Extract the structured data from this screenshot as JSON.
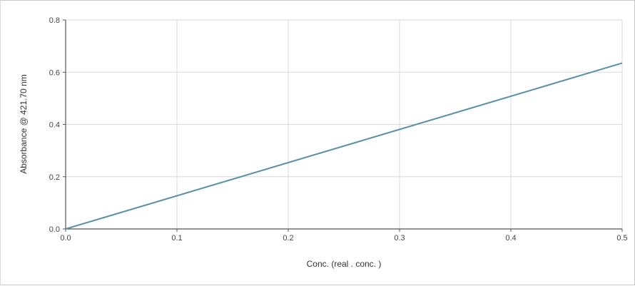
{
  "chart_data": {
    "type": "line",
    "title": "",
    "xlabel": "Conc. (real . conc. )",
    "ylabel": "Absorbance  @ 421.70 nm",
    "xlim": [
      0,
      0.5
    ],
    "ylim": [
      0,
      0.8
    ],
    "x_ticks": [
      "0.0",
      "0.1",
      "0.2",
      "0.3",
      "0.4",
      "0.5"
    ],
    "y_ticks": [
      "0.0",
      "0.2",
      "0.4",
      "0.6",
      "0.8"
    ],
    "grid": true,
    "legend": "none",
    "series": [
      {
        "color": "#5a8fa8",
        "x": [
          0.0,
          0.5
        ],
        "y": [
          0.0,
          0.635
        ]
      }
    ],
    "colors": {
      "grid": "#d9d9d9",
      "axis": "#555555",
      "line": "#5a8fa8"
    }
  }
}
